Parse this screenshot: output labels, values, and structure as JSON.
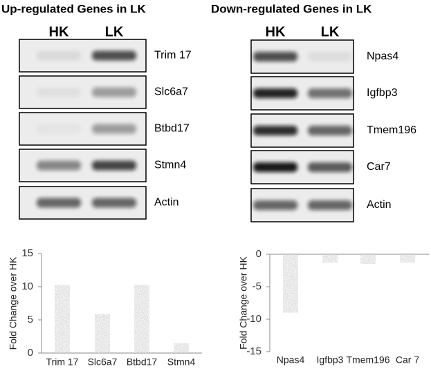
{
  "gels": [
    {
      "title": "Up-regulated Genes in LK",
      "lanes": [
        "HK",
        "LK"
      ],
      "genes": [
        "Trim 17",
        "Slc6a7",
        "Btbd17",
        "Stmn4",
        "Actin"
      ]
    },
    {
      "title": "Down-regulated Genes in LK",
      "lanes": [
        "HK",
        "LK"
      ],
      "genes": [
        "Npas4",
        "Igfbp3",
        "Tmem196",
        "Car7",
        "Actin"
      ]
    }
  ],
  "chart_data": [
    {
      "type": "bar",
      "y_label": "Fold Change over HK",
      "categories": [
        "Trim 17",
        "Slc6a7",
        "Btbd17",
        "Stmn4"
      ],
      "values": [
        10.3,
        5.9,
        10.3,
        1.5
      ],
      "ylim": [
        0,
        15
      ],
      "yticks": [
        0,
        5,
        10,
        15
      ]
    },
    {
      "type": "bar",
      "y_label": "Fold Change over HK",
      "categories": [
        "Npas4",
        "Igfbp3",
        "Tmem196",
        "Car 7"
      ],
      "values": [
        -9,
        -1.3,
        -1.5,
        -1.3
      ],
      "ylim": [
        -15,
        0
      ],
      "yticks": [
        -15,
        -10,
        -5,
        0
      ]
    }
  ]
}
